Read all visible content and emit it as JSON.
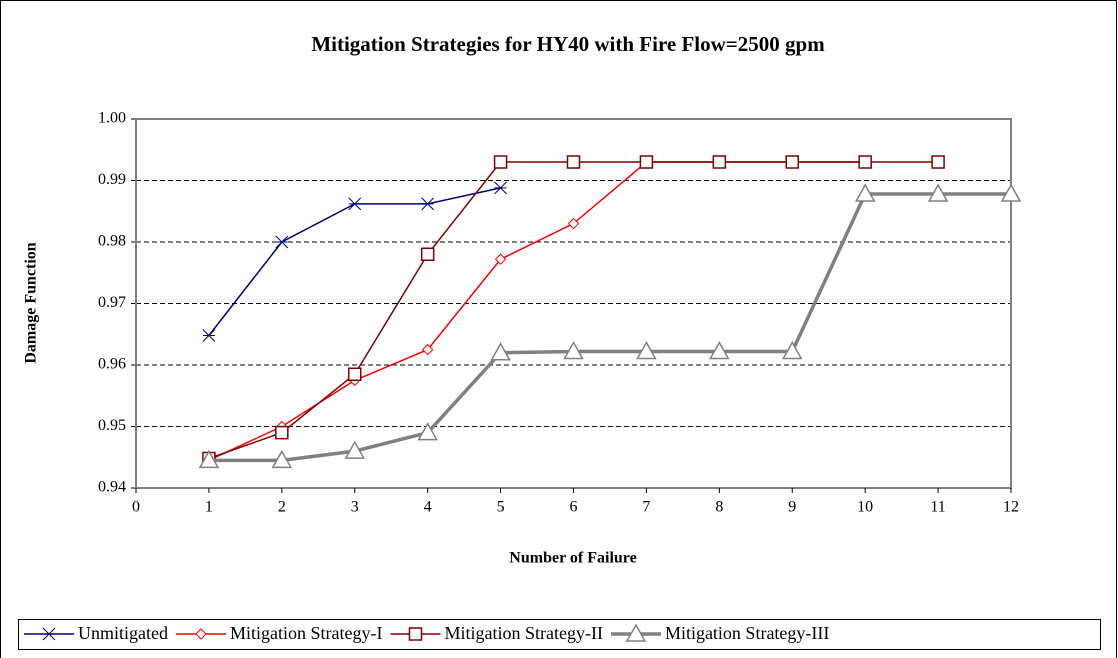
{
  "chart_data": {
    "type": "line",
    "title": "Mitigation Strategies for HY40 with Fire Flow=2500 gpm",
    "x_label": "Number of Failure",
    "y_label": "Damage Function",
    "xlim": [
      0,
      12
    ],
    "xticks": [
      0,
      1,
      2,
      3,
      4,
      5,
      6,
      7,
      8,
      9,
      10,
      11,
      12
    ],
    "ylim": [
      0.94,
      1.0
    ],
    "yticks": [
      0.94,
      0.95,
      0.96,
      0.97,
      0.98,
      0.99,
      {
        "value": 1.0,
        "label": "1.00"
      }
    ],
    "grid": true,
    "legend": "bottom",
    "series": [
      {
        "name": "Unmitigated",
        "color": "#000080",
        "marker": "star",
        "x": [
          1,
          2,
          3,
          4,
          5
        ],
        "values": [
          0.9648,
          0.98,
          0.9862,
          0.9862,
          0.9888
        ]
      },
      {
        "name": "Mitigation Strategy-I",
        "color": "#ff0000",
        "marker": "diamond",
        "x": [
          1,
          2,
          3,
          4,
          5,
          6,
          7,
          8,
          9,
          10
        ],
        "values": [
          0.9445,
          0.95,
          0.9575,
          0.9625,
          0.9772,
          0.983,
          0.993,
          0.993,
          0.993,
          0.993
        ]
      },
      {
        "name": "Mitigation Strategy-II",
        "color": "#800000",
        "marker": "square",
        "x": [
          1,
          2,
          3,
          4,
          5,
          6,
          7,
          8,
          9,
          10,
          11
        ],
        "values": [
          0.9448,
          0.949,
          0.9585,
          0.978,
          0.993,
          0.993,
          0.993,
          0.993,
          0.993,
          0.993,
          0.993
        ]
      },
      {
        "name": "Mitigation Strategy-III",
        "color": "#808080",
        "marker": "triangle",
        "x": [
          1,
          2,
          3,
          4,
          5,
          6,
          7,
          8,
          9,
          10,
          11,
          12
        ],
        "values": [
          0.9445,
          0.9445,
          0.946,
          0.949,
          0.962,
          0.9622,
          0.9622,
          0.9622,
          0.9622,
          0.9878,
          0.9878,
          0.9878
        ]
      }
    ]
  }
}
